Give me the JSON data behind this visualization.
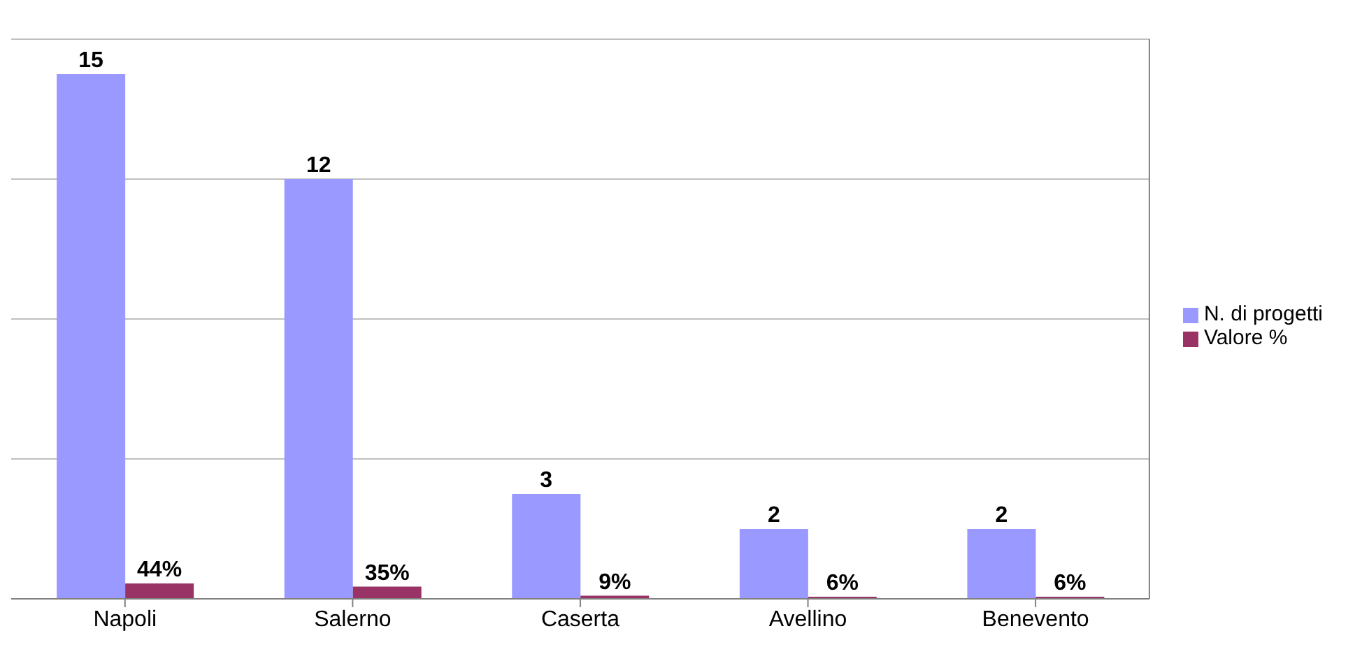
{
  "chart_data": {
    "type": "bar",
    "categories": [
      "Napoli",
      "Salerno",
      "Caserta",
      "Avellino",
      "Benevento"
    ],
    "series": [
      {
        "name": "N. di progetti",
        "color": "#9999ff",
        "values": [
          15,
          12,
          3,
          2,
          2
        ],
        "value_labels": [
          "15",
          "12",
          "3",
          "2",
          "2"
        ]
      },
      {
        "name": "Valore %",
        "color": "#993366",
        "values": [
          0.44,
          0.35,
          0.09,
          0.06,
          0.06
        ],
        "value_labels": [
          "44%",
          "35%",
          "9%",
          "6%",
          "6%"
        ]
      }
    ],
    "grid": "y",
    "tick_labels": "x",
    "legend": "right"
  }
}
